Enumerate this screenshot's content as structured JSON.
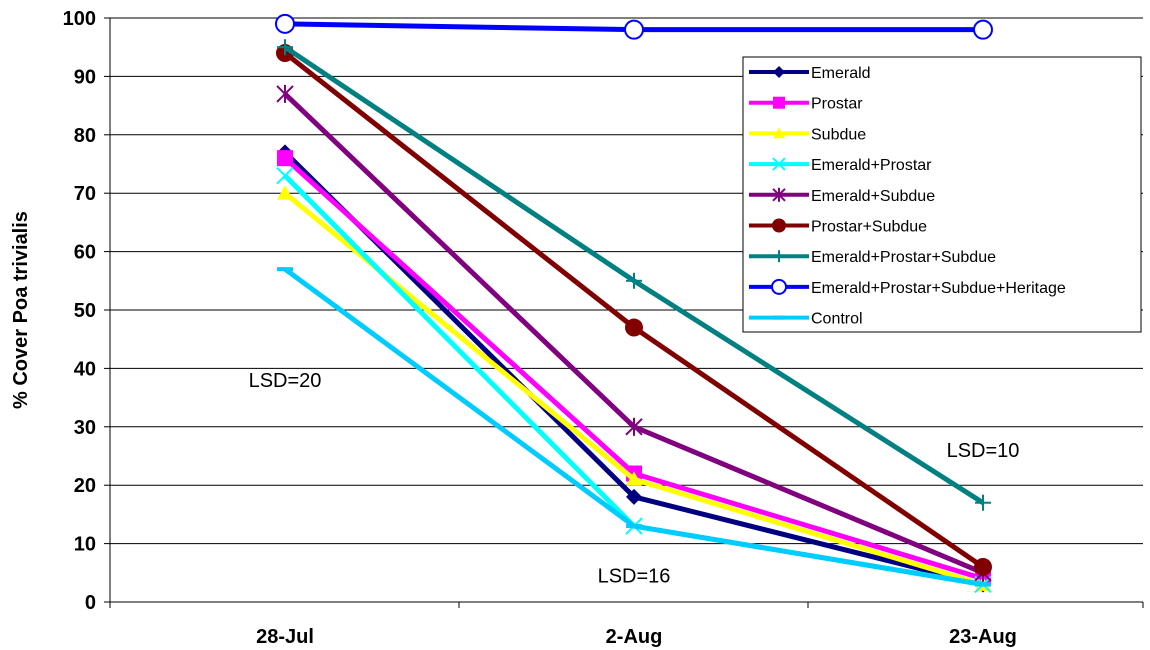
{
  "chart_data": {
    "type": "line",
    "title": "",
    "xlabel": "",
    "ylabel": "% Cover Poa trivialis",
    "ylim": [
      0,
      100
    ],
    "yticks": [
      "0",
      "10",
      "20",
      "30",
      "40",
      "50",
      "60",
      "70",
      "80",
      "90",
      "100"
    ],
    "categories": [
      "28-Jul",
      "2-Aug",
      "23-Aug"
    ],
    "grid": "horizontal",
    "legend_position": "right",
    "series": [
      {
        "name": "Emerald",
        "values": [
          77,
          18,
          3
        ],
        "color": "#000080",
        "marker": "diamond"
      },
      {
        "name": "Prostar",
        "values": [
          76,
          22,
          4
        ],
        "color": "#FF00FF",
        "marker": "square"
      },
      {
        "name": "Subdue",
        "values": [
          70,
          21,
          3
        ],
        "color": "#FFFF00",
        "marker": "triangle"
      },
      {
        "name": "Emerald+Prostar",
        "values": [
          73,
          13,
          3
        ],
        "color": "#00FFFF",
        "marker": "x"
      },
      {
        "name": "Emerald+Subdue",
        "values": [
          87,
          30,
          5
        ],
        "color": "#800080",
        "marker": "star"
      },
      {
        "name": "Prostar+Subdue",
        "values": [
          94,
          47,
          6
        ],
        "color": "#800000",
        "marker": "circle"
      },
      {
        "name": "Emerald+Prostar+Subdue",
        "values": [
          95,
          55,
          17
        ],
        "color": "#008080",
        "marker": "plus"
      },
      {
        "name": "Emerald+Prostar+Subdue+Heritage",
        "values": [
          99,
          98,
          98
        ],
        "color": "#0000FF",
        "marker": "open-circle"
      },
      {
        "name": "Control",
        "values": [
          57,
          13,
          3
        ],
        "color": "#00CCFF",
        "marker": "dash"
      }
    ],
    "annotations": [
      {
        "text": "LSD=20",
        "category": "28-Jul",
        "y": 38
      },
      {
        "text": "LSD=16",
        "category": "2-Aug",
        "y": 4.5
      },
      {
        "text": "LSD=10",
        "category": "23-Aug",
        "y": 26
      }
    ]
  }
}
